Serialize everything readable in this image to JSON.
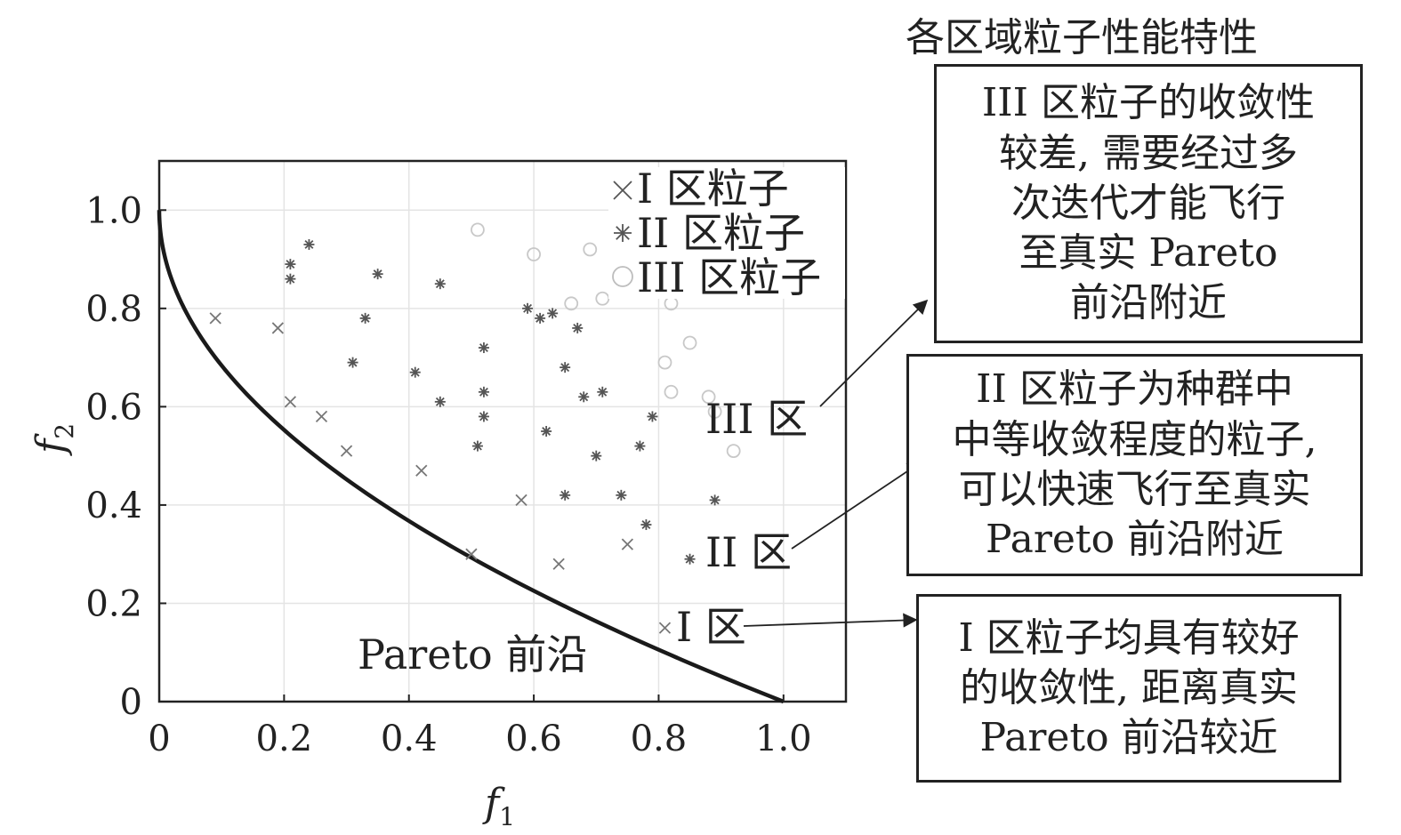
{
  "chart_data": {
    "type": "scatter",
    "title": "",
    "xlabel": "f",
    "xlabel_sub": "1",
    "ylabel": "f",
    "ylabel_sub": "2",
    "xlim": [
      0,
      1.1
    ],
    "ylim": [
      0,
      1.1
    ],
    "xticks": [
      0,
      0.2,
      0.4,
      0.6,
      0.8,
      1.0
    ],
    "xtick_labels": [
      "0",
      "0.2",
      "0.4",
      "0.6",
      "0.8",
      "1.0"
    ],
    "yticks": [
      0,
      0.2,
      0.4,
      0.6,
      0.8,
      1.0
    ],
    "ytick_labels": [
      "0",
      "0.2",
      "0.4",
      "0.6",
      "0.8",
      "1.0"
    ],
    "grid": true,
    "legend_position": "top-right",
    "front": {
      "name": "Pareto 前沿",
      "curve": "f2 = 1 - sqrt(f1)",
      "x_range": [
        0,
        1
      ],
      "color": "#1a1a1a"
    },
    "series": [
      {
        "name": "I 区粒子",
        "marker": "x",
        "color": "#777777",
        "points": [
          [
            0.09,
            0.78
          ],
          [
            0.19,
            0.76
          ],
          [
            0.21,
            0.61
          ],
          [
            0.26,
            0.58
          ],
          [
            0.3,
            0.51
          ],
          [
            0.42,
            0.47
          ],
          [
            0.5,
            0.3
          ],
          [
            0.58,
            0.41
          ],
          [
            0.64,
            0.28
          ],
          [
            0.75,
            0.32
          ],
          [
            0.81,
            0.15
          ]
        ]
      },
      {
        "name": "II 区粒子",
        "marker": "star",
        "color": "#555555",
        "points": [
          [
            0.21,
            0.89
          ],
          [
            0.21,
            0.86
          ],
          [
            0.24,
            0.93
          ],
          [
            0.31,
            0.69
          ],
          [
            0.33,
            0.78
          ],
          [
            0.35,
            0.87
          ],
          [
            0.41,
            0.67
          ],
          [
            0.45,
            0.85
          ],
          [
            0.45,
            0.61
          ],
          [
            0.51,
            0.52
          ],
          [
            0.52,
            0.72
          ],
          [
            0.52,
            0.63
          ],
          [
            0.52,
            0.58
          ],
          [
            0.59,
            0.8
          ],
          [
            0.61,
            0.78
          ],
          [
            0.62,
            0.55
          ],
          [
            0.63,
            0.79
          ],
          [
            0.65,
            0.68
          ],
          [
            0.65,
            0.42
          ],
          [
            0.67,
            0.76
          ],
          [
            0.68,
            0.62
          ],
          [
            0.7,
            0.5
          ],
          [
            0.71,
            0.63
          ],
          [
            0.74,
            0.42
          ],
          [
            0.77,
            0.52
          ],
          [
            0.78,
            0.36
          ],
          [
            0.79,
            0.58
          ],
          [
            0.85,
            0.29
          ],
          [
            0.89,
            0.41
          ]
        ]
      },
      {
        "name": "III 区粒子",
        "marker": "circle",
        "color": "#c8c8c8",
        "points": [
          [
            0.51,
            0.96
          ],
          [
            0.6,
            0.91
          ],
          [
            0.69,
            0.92
          ],
          [
            0.66,
            0.81
          ],
          [
            0.71,
            0.82
          ],
          [
            0.82,
            0.81
          ],
          [
            0.81,
            0.69
          ],
          [
            0.82,
            0.63
          ],
          [
            0.85,
            0.73
          ],
          [
            0.88,
            0.62
          ],
          [
            0.89,
            0.59
          ],
          [
            0.92,
            0.51
          ]
        ]
      }
    ],
    "annotations": [
      {
        "text": "III 区",
        "x": 0.88,
        "y": 0.57
      },
      {
        "text": "II 区",
        "x": 0.88,
        "y": 0.3
      },
      {
        "text": "I 区",
        "x": 0.82,
        "y": 0.15
      },
      {
        "text": "Pareto 前沿",
        "x": 0.32,
        "y": 0.09
      }
    ]
  },
  "side_panel": {
    "heading": "各区域粒子性能特性",
    "notes": [
      {
        "region": "III",
        "text": "III 区粒子的收敛性\n较差, 需要经过多\n次迭代才能飞行\n至真实 Pareto\n前沿附近"
      },
      {
        "region": "II",
        "text": "II 区粒子为种群中\n中等收敛程度的粒子,\n可以快速飞行至真实\nPareto 前沿附近"
      },
      {
        "region": "I",
        "text": "I 区粒子均具有较好\n的收敛性, 距离真实\nPareto 前沿较近"
      }
    ]
  }
}
